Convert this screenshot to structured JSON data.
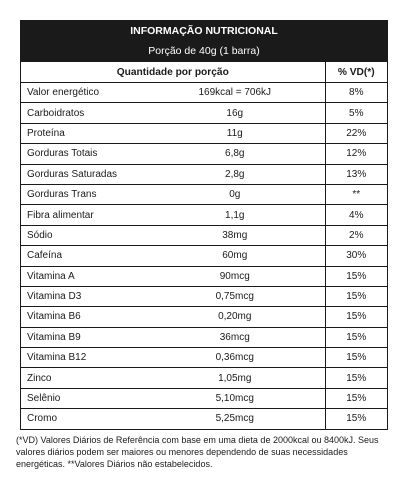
{
  "header": {
    "title": "INFORMAÇÃO NUTRICIONAL",
    "serving": "Porção de 40g (1 barra)"
  },
  "columns": {
    "quantity": "Quantidade por porção",
    "dv": "% VD(*)"
  },
  "rows": [
    {
      "name": "Valor energético",
      "amount": "169kcal = 706kJ",
      "dv": "8%"
    },
    {
      "name": "Carboidratos",
      "amount": "16g",
      "dv": "5%"
    },
    {
      "name": "Proteína",
      "amount": "11g",
      "dv": "22%"
    },
    {
      "name": "Gorduras Totais",
      "amount": "6,8g",
      "dv": "12%"
    },
    {
      "name": "Gorduras Saturadas",
      "amount": "2,8g",
      "dv": "13%"
    },
    {
      "name": "Gorduras Trans",
      "amount": "0g",
      "dv": "**"
    },
    {
      "name": "Fibra alimentar",
      "amount": "1,1g",
      "dv": "4%"
    },
    {
      "name": "Sódio",
      "amount": "38mg",
      "dv": "2%"
    },
    {
      "name": "Cafeína",
      "amount": "60mg",
      "dv": "30%"
    },
    {
      "name": "Vitamina A",
      "amount": "90mcg",
      "dv": "15%"
    },
    {
      "name": "Vitamina D3",
      "amount": "0,75mcg",
      "dv": "15%"
    },
    {
      "name": "Vitamina B6",
      "amount": "0,20mg",
      "dv": "15%"
    },
    {
      "name": "Vitamina B9",
      "amount": "36mcg",
      "dv": "15%"
    },
    {
      "name": "Vitamina B12",
      "amount": "0,36mcg",
      "dv": "15%"
    },
    {
      "name": "Zinco",
      "amount": "1,05mg",
      "dv": "15%"
    },
    {
      "name": "Selênio",
      "amount": "5,10mcg",
      "dv": "15%"
    },
    {
      "name": "Cromo",
      "amount": "5,25mcg",
      "dv": "15%"
    }
  ],
  "footnote": "(*VD) Valores Diários de Referência com base em uma dieta de 2000kcal ou 8400kJ. Seus valores diários podem ser maiores ou menores dependendo de suas necessidades energéticas. **Valores Diários não estabelecidos."
}
